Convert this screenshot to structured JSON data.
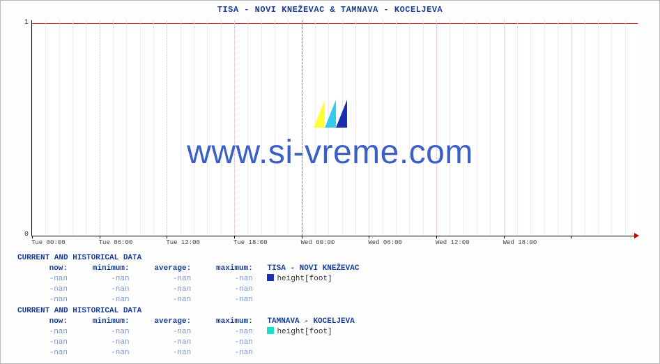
{
  "side_label": "www.si-vreme.com",
  "title": "TISA -  NOVI KNEŽEVAC &  TAMNAVA -  KOCELJEVA",
  "watermark": "www.si-vreme.com",
  "chart": {
    "type": "line",
    "background_color": "#ffffff",
    "grid_color_major": "#e6a0c0",
    "grid_color_minor": "#f0d0e0",
    "midnight_color": "#d040d0",
    "topline_color": "#c00000",
    "axis_color": "#000000",
    "ylim": [
      0,
      1
    ],
    "yticks": [
      0,
      1
    ],
    "x_major_labels": [
      "Tue 00:00",
      "Tue 06:00",
      "Tue 12:00",
      "Tue 18:00",
      "Wed 00:00",
      "Wed 06:00",
      "Wed 12:00",
      "Wed 18:00"
    ],
    "x_major_count": 8,
    "x_minor_per_major": 5,
    "midnight_index": 4,
    "watermark_icon_colors": [
      "#ffff33",
      "#33ccee",
      "#1a2fb0"
    ],
    "arrow_color": "#c00000"
  },
  "blocks": [
    {
      "header": "CURRENT AND HISTORICAL DATA",
      "cols": {
        "now": "now:",
        "min": "minimum:",
        "avg": "average:",
        "max": "maximum:"
      },
      "series_label": "TISA -  NOVI KNEŽEVAC",
      "swatch": "#1a2fb0",
      "legend": "height[foot]",
      "rows": [
        {
          "now": "-nan",
          "min": "-nan",
          "avg": "-nan",
          "max": "-nan"
        },
        {
          "now": "-nan",
          "min": "-nan",
          "avg": "-nan",
          "max": "-nan"
        },
        {
          "now": "-nan",
          "min": "-nan",
          "avg": "-nan",
          "max": "-nan"
        }
      ]
    },
    {
      "header": "CURRENT AND HISTORICAL DATA",
      "cols": {
        "now": "now:",
        "min": "minimum:",
        "avg": "average:",
        "max": "maximum:"
      },
      "series_label": "TAMNAVA -  KOCELJEVA",
      "swatch": "#18e0c8",
      "legend": "height[foot]",
      "rows": [
        {
          "now": "-nan",
          "min": "-nan",
          "avg": "-nan",
          "max": "-nan"
        },
        {
          "now": "-nan",
          "min": "-nan",
          "avg": "-nan",
          "max": "-nan"
        },
        {
          "now": "-nan",
          "min": "-nan",
          "avg": "-nan",
          "max": "-nan"
        }
      ]
    }
  ],
  "colors": {
    "title_color": "#1a3f9c",
    "label_color": "#1a3f9c",
    "value_color": "#7a95d0",
    "side_color": "#2b4fa8",
    "wm_color": "#3a5fc8"
  },
  "fonts": {
    "mono": "Courier New",
    "title_size": 12,
    "label_size": 11,
    "wm_size": 48
  }
}
